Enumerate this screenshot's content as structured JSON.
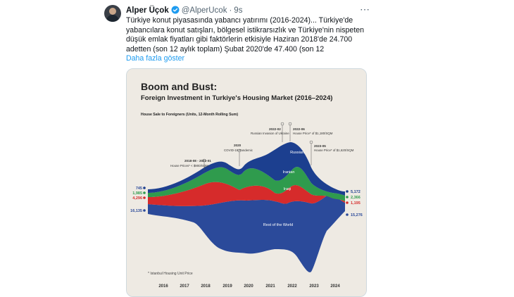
{
  "tweet": {
    "author_name": "Alper Üçok",
    "handle": "@AlperUcok",
    "separator": "·",
    "time": "9s",
    "more_icon": "⋯",
    "text": "Türkiye konut piyasasında yabancı yatırımı (2016-2024)... Türkiye'de\nyabancılara konut satışları, bölgesel istikrarsızlık ve Türkiye'nin nispeten\ndüşük emlak fiyatları gibi faktörlerin etkisiyle Haziran 2018'de 24.700\nadetten (son 12 aylık toplam) Şubat 2020'de 47.400 (son 12",
    "show_more": "Daha fazla göster",
    "verified_color": "#1d9bf0"
  },
  "chart_data": {
    "type": "area",
    "title": "Boom and Bust:",
    "subtitle": "Foreign Investment in Turkiye's Housing Market (2016–2024)",
    "ylabel": "House Sale to Foreigners (Units, 12-Month Rolling Sum)",
    "footnote": "* Istanbul Housing Unit Price",
    "x_ticks": [
      "2016",
      "2017",
      "2018",
      "2019",
      "2020",
      "2021",
      "2022",
      "2023",
      "2024"
    ],
    "series": [
      {
        "name": "Rest of the World",
        "color": "#2b4a9a",
        "start": "16,135",
        "end": "15,276"
      },
      {
        "name": "Iraqi",
        "color": "#d62b2b",
        "start": "4,296",
        "end": "1,195"
      },
      {
        "name": "Iranian",
        "color": "#2f9b4d",
        "start": "1,985",
        "end": "2,366"
      },
      {
        "name": "Russian",
        "color": "#1c3f8f",
        "start": "745",
        "end": "5,172"
      }
    ],
    "annotations": [
      {
        "date": "2018-08 - 2022-01",
        "text": "House Prices* < $900/SQM"
      },
      {
        "date": "2020",
        "text": "COVID-19 Pandemic"
      },
      {
        "date": "2022-02",
        "text": "Russian Invasion of Ukraine"
      },
      {
        "date": "2022-06",
        "text": "House Price* of $1,180/SQM"
      },
      {
        "date": "2023-05",
        "text": "House Price* of $1,620/SQM"
      }
    ]
  }
}
